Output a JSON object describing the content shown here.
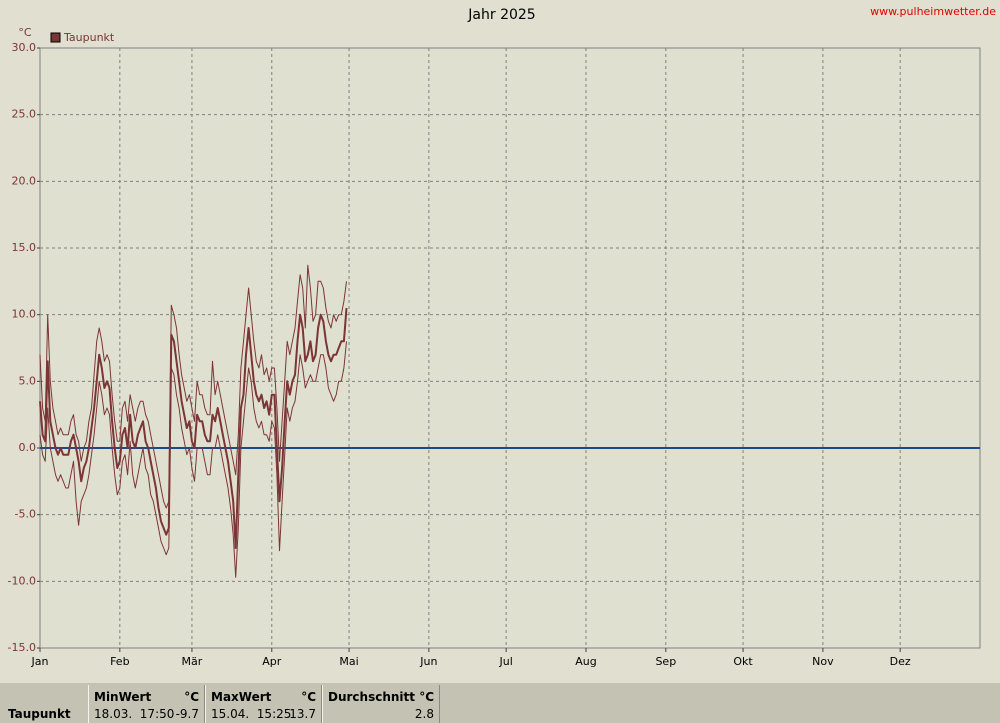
{
  "chart_data": {
    "type": "line",
    "title": "Jahr 2025",
    "source": "www.pulheimwetter.de",
    "unit": "°C",
    "xlim": [
      0,
      365
    ],
    "xticks": [
      {
        "value": 0,
        "label": "Jan"
      },
      {
        "value": 31,
        "label": "Feb"
      },
      {
        "value": 59,
        "label": "Mär"
      },
      {
        "value": 90,
        "label": "Apr"
      },
      {
        "value": 120,
        "label": "Mai"
      },
      {
        "value": 151,
        "label": "Jun"
      },
      {
        "value": 181,
        "label": "Jul"
      },
      {
        "value": 212,
        "label": "Aug"
      },
      {
        "value": 243,
        "label": "Sep"
      },
      {
        "value": 273,
        "label": "Okt"
      },
      {
        "value": 304,
        "label": "Nov"
      },
      {
        "value": 334,
        "label": "Dez"
      }
    ],
    "ylim": [
      -15,
      30
    ],
    "yticks": [
      {
        "value": 30,
        "label": "30.0"
      },
      {
        "value": 25,
        "label": "25.0"
      },
      {
        "value": 20,
        "label": "20.0"
      },
      {
        "value": 15,
        "label": "15.0"
      },
      {
        "value": 10,
        "label": "10.0"
      },
      {
        "value": 5,
        "label": "5.0"
      },
      {
        "value": 0,
        "label": "0.0"
      },
      {
        "value": -5,
        "label": "-5.0"
      },
      {
        "value": -10,
        "label": "-10.0"
      },
      {
        "value": -15,
        "label": "-15.0"
      }
    ],
    "grid": true,
    "zero_line_color": "#1a4a8a",
    "series": [
      {
        "name": "Taupunkt",
        "color": "#7a3535",
        "values": [
          3.5,
          1,
          0.5,
          6.5,
          2,
          1,
          0,
          -0.5,
          0,
          -0.5,
          -0.5,
          -0.5,
          0.5,
          1,
          0,
          -1,
          -2.5,
          -1.5,
          -1,
          0,
          1.5,
          3,
          5,
          7,
          6,
          4.5,
          5,
          4.5,
          2,
          0,
          -1.5,
          -1,
          1,
          1.5,
          0,
          2.5,
          0.5,
          0,
          1,
          1.5,
          2,
          0.5,
          0,
          -1,
          -2,
          -3,
          -4.5,
          -5.5,
          -6,
          -6.5,
          -6,
          8.5,
          8,
          6.5,
          5,
          3.5,
          2.5,
          1.5,
          2,
          0.5,
          0,
          2.5,
          2,
          2,
          1,
          0.5,
          0.5,
          2.5,
          2,
          3,
          2,
          1,
          0,
          -1,
          -2.5,
          -4,
          -7.5,
          -2,
          3,
          4,
          7,
          9,
          7,
          5,
          4,
          3.5,
          4,
          3,
          3.5,
          2.5,
          4,
          4,
          0,
          -4,
          -1.5,
          2,
          5,
          4,
          5,
          5.5,
          8,
          10,
          9,
          6.5,
          7,
          8,
          6.5,
          7,
          9,
          10,
          9.5,
          8,
          7,
          6.5,
          7,
          7,
          7.5,
          8,
          8,
          10.5
        ]
      },
      {
        "color": "#7a3535",
        "values": [
          7,
          3,
          2,
          10,
          5,
          3,
          2,
          1,
          1.5,
          1,
          1,
          1,
          2,
          2.5,
          1,
          0.5,
          -1,
          0,
          0.5,
          2,
          3,
          5.5,
          8,
          9,
          8,
          6.5,
          7,
          6.5,
          4,
          2,
          0.5,
          0.5,
          3,
          3.5,
          2,
          4,
          3,
          2,
          3,
          3.5,
          3.5,
          2.5,
          2,
          1,
          0,
          -1,
          -2,
          -3,
          -4,
          -4.5,
          -4,
          10.7,
          10,
          9,
          7,
          5.5,
          4.5,
          3.5,
          4,
          3,
          2,
          5,
          4,
          4,
          3,
          2.5,
          2.5,
          6.5,
          4,
          5,
          4,
          3,
          2,
          1,
          0,
          -1,
          -2,
          1,
          6,
          8,
          10,
          12,
          10,
          8,
          6.5,
          6,
          7,
          5.5,
          6,
          5,
          6,
          6,
          3,
          -1,
          2,
          5,
          8,
          7,
          8,
          9,
          11,
          13,
          12,
          9,
          13.7,
          12,
          9.5,
          10,
          12.5,
          12.5,
          12,
          10.5,
          9.5,
          9,
          10,
          9.5,
          10,
          10,
          11,
          12.5
        ]
      },
      {
        "color": "#7a3535",
        "values": [
          1,
          -0.5,
          -1,
          3,
          0,
          -1,
          -2,
          -2.5,
          -2,
          -2.5,
          -3,
          -3,
          -2,
          -1,
          -4,
          -5.8,
          -4,
          -3.5,
          -3,
          -2,
          -0.5,
          1,
          3,
          5,
          4,
          2.5,
          3,
          2.5,
          0,
          -2,
          -3.5,
          -3,
          -1,
          -0.5,
          -2,
          0.5,
          -2,
          -3,
          -2,
          -1,
          0,
          -1.5,
          -2,
          -3.5,
          -4,
          -5,
          -6,
          -7,
          -7.5,
          -8,
          -7.5,
          6,
          5.5,
          4,
          3,
          1.5,
          0.5,
          -0.5,
          0,
          -1.5,
          -2.5,
          0,
          0,
          0,
          -1,
          -2,
          -2,
          0,
          0,
          1,
          0,
          -1,
          -2,
          -3,
          -4.5,
          -6.5,
          -9.7,
          -6,
          0,
          2,
          4,
          6,
          5,
          3,
          2,
          1.5,
          2,
          1,
          1,
          0.5,
          2,
          1.5,
          -2,
          -7.7,
          -4,
          -0.5,
          3,
          2,
          3,
          3.5,
          5,
          7,
          6,
          4.5,
          5,
          5.5,
          5,
          5,
          6,
          7,
          7,
          6,
          4.5,
          4,
          3.5,
          4,
          5,
          5,
          6,
          8
        ]
      }
    ]
  },
  "stats": {
    "row_label": "Taupunkt",
    "min": {
      "header": "MinWert",
      "unit": "°C",
      "time": "18.03.  17:50",
      "value": -9.7
    },
    "max": {
      "header": "MaxWert",
      "unit": "°C",
      "time": "15.04.  15:25",
      "value": 13.7
    },
    "avg": {
      "header": "Durchschnitt",
      "unit": "°C",
      "value": 2.8
    }
  }
}
